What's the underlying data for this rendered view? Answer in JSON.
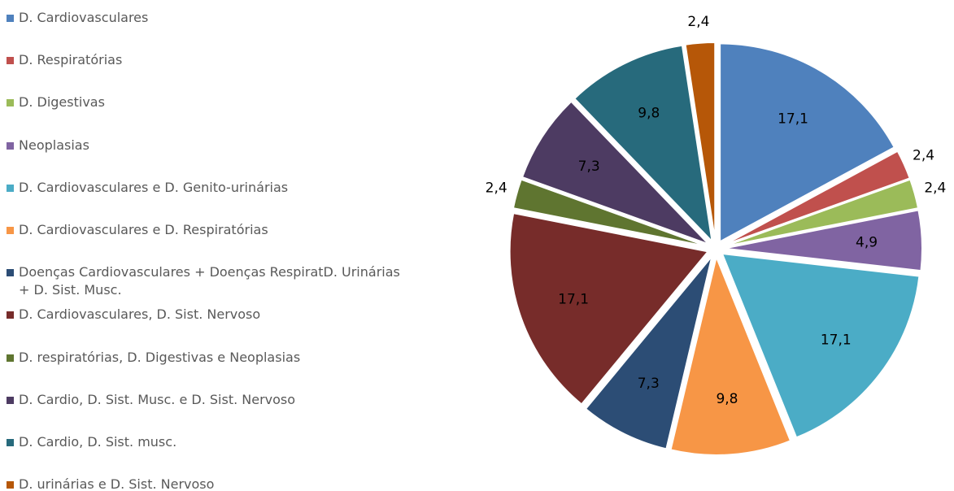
{
  "chart_data": {
    "type": "pie",
    "categories": [
      "D. Cardiovasculares",
      "D. Respiratórias",
      "D. Digestivas",
      "Neoplasias",
      "D. Cardiovasculares e D. Genito-urinárias",
      "D. Cardiovasculares e D. Respiratórias",
      "Doenças Cardiovasculares + Doenças RespiratD. Urinárias + D. Sist. Musc.",
      "D. Cardiovasculares, D. Sist. Nervoso",
      "D. respiratórias, D. Digestivas e Neoplasias",
      "D. Cardio, D. Sist. Musc. e D. Sist. Nervoso",
      "D. Cardio, D. Sist. musc.",
      "D. urinárias e D. Sist. Nervoso"
    ],
    "values": [
      17.1,
      2.4,
      2.4,
      4.9,
      17.1,
      9.8,
      7.3,
      17.1,
      2.4,
      7.3,
      9.8,
      2.4
    ],
    "value_labels": [
      "17,1",
      "2,4",
      "2,4",
      "4,9",
      "17,1",
      "9,8",
      "7,3",
      "17,1",
      "2,4",
      "7,3",
      "9,8",
      "2,4"
    ],
    "colors": [
      "#4f81bd",
      "#c0504d",
      "#9bbb59",
      "#8064a2",
      "#4bacc6",
      "#f79646",
      "#2c4d75",
      "#772c2a",
      "#5f7530",
      "#4d3b62",
      "#276a7c",
      "#b65708"
    ],
    "legend": "left"
  }
}
